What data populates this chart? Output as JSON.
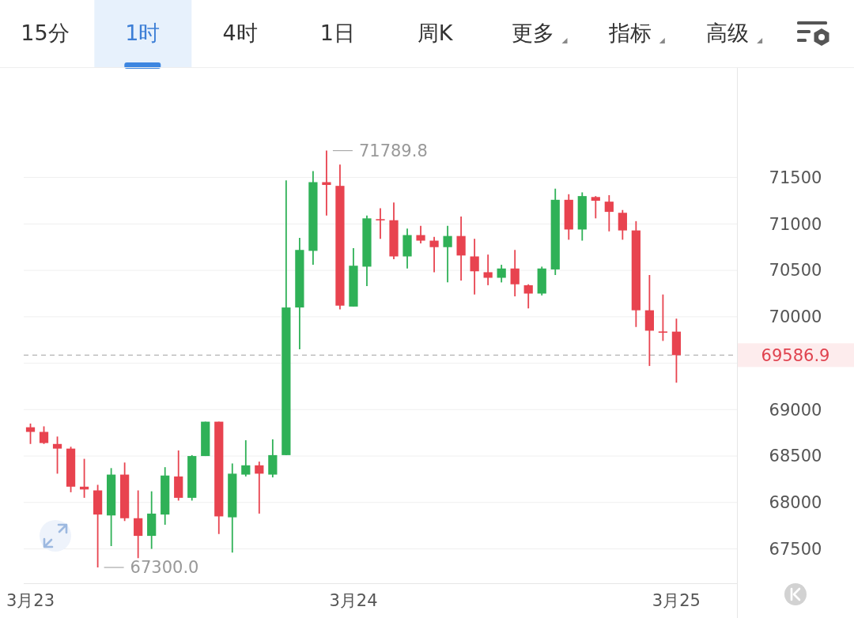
{
  "chart_data": {
    "type": "candlestick",
    "categories": [
      "3月23",
      null,
      null,
      null,
      null,
      null,
      null,
      null,
      null,
      null,
      null,
      null,
      null,
      null,
      null,
      null,
      null,
      null,
      null,
      null,
      null,
      null,
      null,
      null,
      "3月24",
      null,
      null,
      null,
      null,
      null,
      null,
      null,
      null,
      null,
      null,
      null,
      null,
      null,
      null,
      null,
      null,
      null,
      null,
      null,
      null,
      null,
      null,
      null,
      "3月25",
      null,
      null,
      null,
      null
    ],
    "ohlc": [
      [
        68810,
        68850,
        68630,
        68760
      ],
      [
        68760,
        68820,
        68630,
        68640
      ],
      [
        68630,
        68710,
        68310,
        68580
      ],
      [
        68580,
        68600,
        68110,
        68170
      ],
      [
        68170,
        68470,
        68050,
        68140
      ],
      [
        68130,
        68190,
        67300,
        67870
      ],
      [
        67860,
        68370,
        67530,
        68300
      ],
      [
        68300,
        68430,
        67800,
        67830
      ],
      [
        67830,
        68130,
        67400,
        67640
      ],
      [
        67640,
        68120,
        67500,
        67880
      ],
      [
        67870,
        68380,
        67760,
        68290
      ],
      [
        68280,
        68560,
        68020,
        68050
      ],
      [
        68050,
        68510,
        68020,
        68500
      ],
      [
        68500,
        68870,
        68500,
        68870
      ],
      [
        68870,
        68870,
        67660,
        67850
      ],
      [
        67840,
        68420,
        67460,
        68310
      ],
      [
        68300,
        68670,
        68280,
        68400
      ],
      [
        68400,
        68440,
        67880,
        68310
      ],
      [
        68300,
        68680,
        68270,
        68510
      ],
      [
        68510,
        71470,
        68510,
        70100
      ],
      [
        70100,
        70850,
        69650,
        70720
      ],
      [
        70710,
        71570,
        70560,
        71450
      ],
      [
        71450,
        71789.8,
        71090,
        71420
      ],
      [
        71410,
        71640,
        70080,
        70120
      ],
      [
        70110,
        70740,
        70110,
        70550
      ],
      [
        70540,
        71090,
        70330,
        71060
      ],
      [
        71050,
        71170,
        70840,
        71040
      ],
      [
        71040,
        71230,
        70620,
        70650
      ],
      [
        70650,
        70950,
        70520,
        70880
      ],
      [
        70880,
        70980,
        70790,
        70820
      ],
      [
        70820,
        70860,
        70480,
        70750
      ],
      [
        70750,
        70980,
        70370,
        70870
      ],
      [
        70870,
        71080,
        70390,
        70660
      ],
      [
        70650,
        70840,
        70240,
        70490
      ],
      [
        70480,
        70670,
        70340,
        70420
      ],
      [
        70420,
        70560,
        70370,
        70520
      ],
      [
        70520,
        70720,
        70220,
        70350
      ],
      [
        70340,
        70350,
        70090,
        70250
      ],
      [
        70250,
        70540,
        70230,
        70520
      ],
      [
        70510,
        71380,
        70450,
        71260
      ],
      [
        71260,
        71320,
        70830,
        70940
      ],
      [
        70940,
        71340,
        70820,
        71300
      ],
      [
        71290,
        71300,
        71060,
        71250
      ],
      [
        71240,
        71310,
        70920,
        71130
      ],
      [
        71120,
        71150,
        70830,
        70930
      ],
      [
        70930,
        71030,
        69890,
        70070
      ],
      [
        70070,
        70450,
        69470,
        69850
      ],
      [
        69840,
        70240,
        69740,
        69830
      ],
      [
        69840,
        69980,
        69290,
        69586.9
      ],
      null,
      null,
      null,
      null
    ],
    "colors": [
      "#e8434f",
      "#e8434f",
      "#e8434f",
      "#e8434f",
      "#e8434f",
      "#e8434f",
      "#2fb157",
      "#e8434f",
      "#e8434f",
      "#2fb157",
      "#2fb157",
      "#e8434f",
      "#2fb157",
      "#2fb157",
      "#e8434f",
      "#2fb157",
      "#2fb157",
      "#e8434f",
      "#2fb157",
      "#2fb157",
      "#2fb157",
      "#2fb157",
      "#e8434f",
      "#e8434f",
      "#2fb157",
      "#2fb157",
      "#e8434f",
      "#e8434f",
      "#2fb157",
      "#e8434f",
      "#e8434f",
      "#2fb157",
      "#e8434f",
      "#e8434f",
      "#e8434f",
      "#2fb157",
      "#e8434f",
      "#e8434f",
      "#2fb157",
      "#2fb157",
      "#e8434f",
      "#2fb157",
      "#e8434f",
      "#e8434f",
      "#e8434f",
      "#e8434f",
      "#e8434f",
      "#e8434f",
      "#e8434f",
      null,
      null,
      null,
      null
    ],
    "ylim": [
      67130,
      72680
    ],
    "yticks": [
      67500,
      68000,
      68500,
      69000,
      {
        "value": 69500,
        "label": null
      },
      70000,
      70500,
      71000,
      71500
    ],
    "grid": "y",
    "ref_lines": [
      {
        "axis": "y",
        "value": 69586.9,
        "label": "69586.9",
        "color": "#b4b4b4",
        "line_style": "dashed"
      }
    ],
    "annotations": [
      "15分",
      "1时",
      "4时",
      "1日",
      "周K",
      "更多",
      "指标",
      "高级",
      "71789.8",
      "67300.0"
    ]
  }
}
